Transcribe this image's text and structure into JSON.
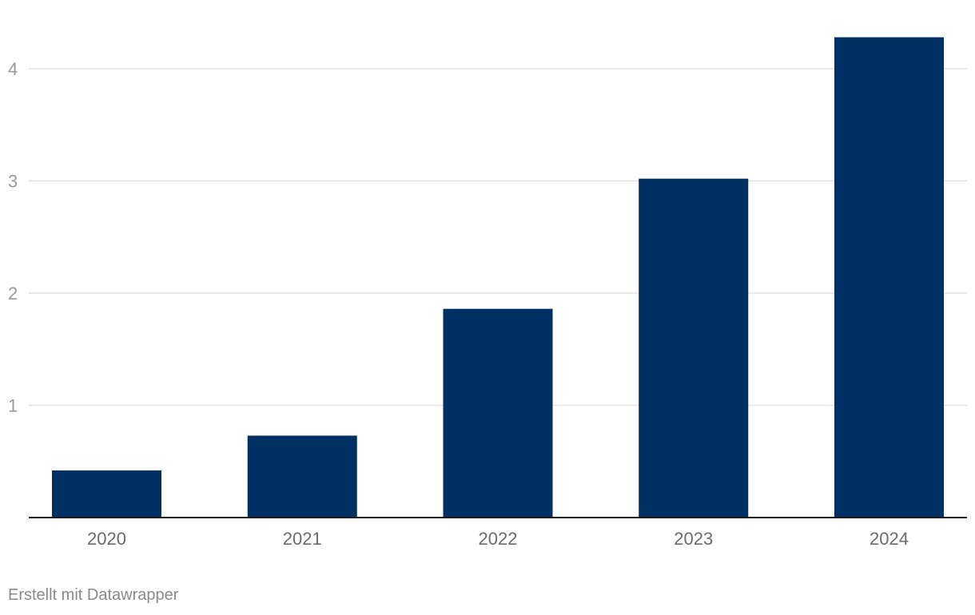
{
  "chart_data": {
    "type": "bar",
    "categories": [
      "2020",
      "2021",
      "2022",
      "2023",
      "2024"
    ],
    "values": [
      0.42,
      0.73,
      1.86,
      3.02,
      4.28
    ],
    "yticks": [
      "1",
      "2",
      "3",
      "4"
    ],
    "ylim": [
      0,
      4.5
    ],
    "grid": true,
    "bar_color": "#003063",
    "title": "",
    "xlabel": "",
    "ylabel": ""
  },
  "footer": {
    "credit": "Erstellt mit Datawrapper"
  }
}
